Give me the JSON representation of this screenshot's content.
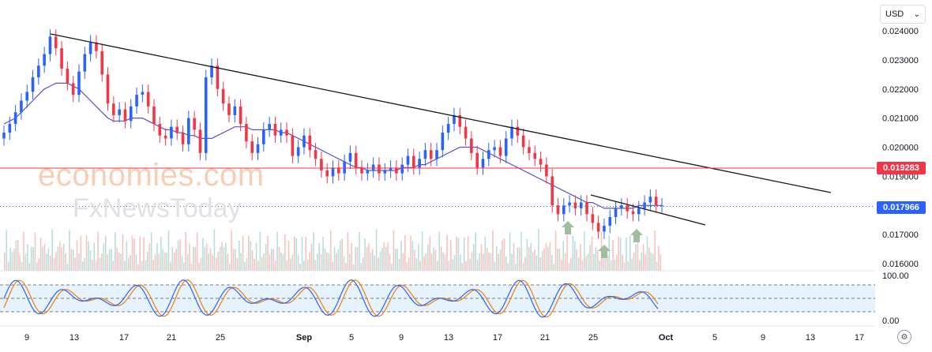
{
  "currency": {
    "label": "USD"
  },
  "watermark": {
    "line1": "economies.com",
    "line2": "FxNewsToday"
  },
  "chart_data": {
    "type": "line",
    "description_series": "candlestick price with moving average, volume histogram and stochastic oscillator",
    "price_axis": {
      "ticks": [
        "0.024000",
        "0.023000",
        "0.022000",
        "0.021000",
        "0.020000",
        "0.019000",
        "0.017000",
        "0.016000"
      ],
      "range": [
        0.0155,
        0.0243
      ]
    },
    "time_axis": {
      "ticks": [
        "9",
        "13",
        "17",
        "21",
        "25",
        "Sep",
        "5",
        "9",
        "13",
        "17",
        "21",
        "25",
        "Oct",
        "5",
        "9",
        "13",
        "17"
      ]
    },
    "price_labels": {
      "resistance": "0.019283",
      "last": "0.017966"
    },
    "stochastic_axis": {
      "ticks": [
        "100.00",
        "0.00"
      ],
      "range": [
        0,
        100
      ],
      "band": [
        20,
        80
      ]
    },
    "close": [
      0.0205,
      0.0208,
      0.0212,
      0.0216,
      0.0219,
      0.0224,
      0.0228,
      0.0232,
      0.0238,
      0.0234,
      0.0227,
      0.0222,
      0.0218,
      0.0226,
      0.0232,
      0.0236,
      0.0233,
      0.0225,
      0.0215,
      0.0211,
      0.0213,
      0.0209,
      0.0214,
      0.0218,
      0.0219,
      0.0214,
      0.0208,
      0.0204,
      0.0203,
      0.0207,
      0.0205,
      0.0201,
      0.021,
      0.0206,
      0.0198,
      0.0224,
      0.0228,
      0.022,
      0.0215,
      0.0211,
      0.0214,
      0.0208,
      0.0202,
      0.0198,
      0.0201,
      0.0206,
      0.0208,
      0.0204,
      0.0206,
      0.0204,
      0.0197,
      0.02,
      0.0204,
      0.0199,
      0.0196,
      0.0192,
      0.019,
      0.0193,
      0.0191,
      0.0195,
      0.0198,
      0.0193,
      0.0191,
      0.0192,
      0.0194,
      0.0191,
      0.0192,
      0.0193,
      0.0191,
      0.0194,
      0.0197,
      0.0193,
      0.0196,
      0.0199,
      0.0196,
      0.0199,
      0.0205,
      0.0208,
      0.0211,
      0.0207,
      0.0203,
      0.0198,
      0.0193,
      0.0196,
      0.0199,
      0.02,
      0.0197,
      0.0203,
      0.0207,
      0.0204,
      0.02,
      0.0198,
      0.0196,
      0.0194,
      0.019,
      0.018,
      0.0177,
      0.018,
      0.0181,
      0.0179,
      0.0181,
      0.0177,
      0.0174,
      0.0171,
      0.0173,
      0.0176,
      0.0179,
      0.018,
      0.0178,
      0.0177,
      0.0179,
      0.0181,
      0.0183,
      0.018,
      0.018
    ],
    "ma": [
      0.0208,
      0.0209,
      0.021,
      0.0212,
      0.0214,
      0.0216,
      0.0218,
      0.022,
      0.0221,
      0.0222,
      0.0222,
      0.0222,
      0.0221,
      0.022,
      0.0218,
      0.0216,
      0.0214,
      0.0212,
      0.021,
      0.0209,
      0.0209,
      0.0209,
      0.021,
      0.021,
      0.021,
      0.0209,
      0.0208,
      0.0207,
      0.0206,
      0.0206,
      0.0205,
      0.0205,
      0.0204,
      0.0204,
      0.0203,
      0.0203,
      0.0203,
      0.0204,
      0.0205,
      0.0206,
      0.0207,
      0.0207,
      0.0207,
      0.0206,
      0.0206,
      0.0206,
      0.0206,
      0.0206,
      0.0205,
      0.0205,
      0.0204,
      0.0203,
      0.0202,
      0.0201,
      0.02,
      0.0199,
      0.0198,
      0.0197,
      0.0196,
      0.0195,
      0.0194,
      0.0193,
      0.0193,
      0.0192,
      0.0192,
      0.0192,
      0.0192,
      0.0192,
      0.0192,
      0.0193,
      0.0193,
      0.0193,
      0.0194,
      0.0194,
      0.0195,
      0.0196,
      0.0197,
      0.0198,
      0.0199,
      0.02,
      0.02,
      0.02,
      0.02,
      0.0199,
      0.0198,
      0.0197,
      0.0196,
      0.0195,
      0.0194,
      0.0193,
      0.0192,
      0.0191,
      0.019,
      0.0189,
      0.0188,
      0.0187,
      0.0186,
      0.0185,
      0.0184,
      0.0183,
      0.0182,
      0.0181,
      0.0181,
      0.018,
      0.0179,
      0.0179,
      0.0179,
      0.0179,
      0.0179,
      0.0179,
      0.018,
      0.018,
      0.018,
      0.018,
      0.018
    ],
    "downtrend_long": {
      "from": [
        0.0239,
        8
      ],
      "to": [
        0.0185,
        1052
      ]
    },
    "downtrend_short": {
      "from": [
        0.0184,
        748
      ],
      "to": [
        0.0174,
        893
      ]
    },
    "arrows": [
      "up",
      "up",
      "up"
    ],
    "legend": "none",
    "grid": false
  }
}
